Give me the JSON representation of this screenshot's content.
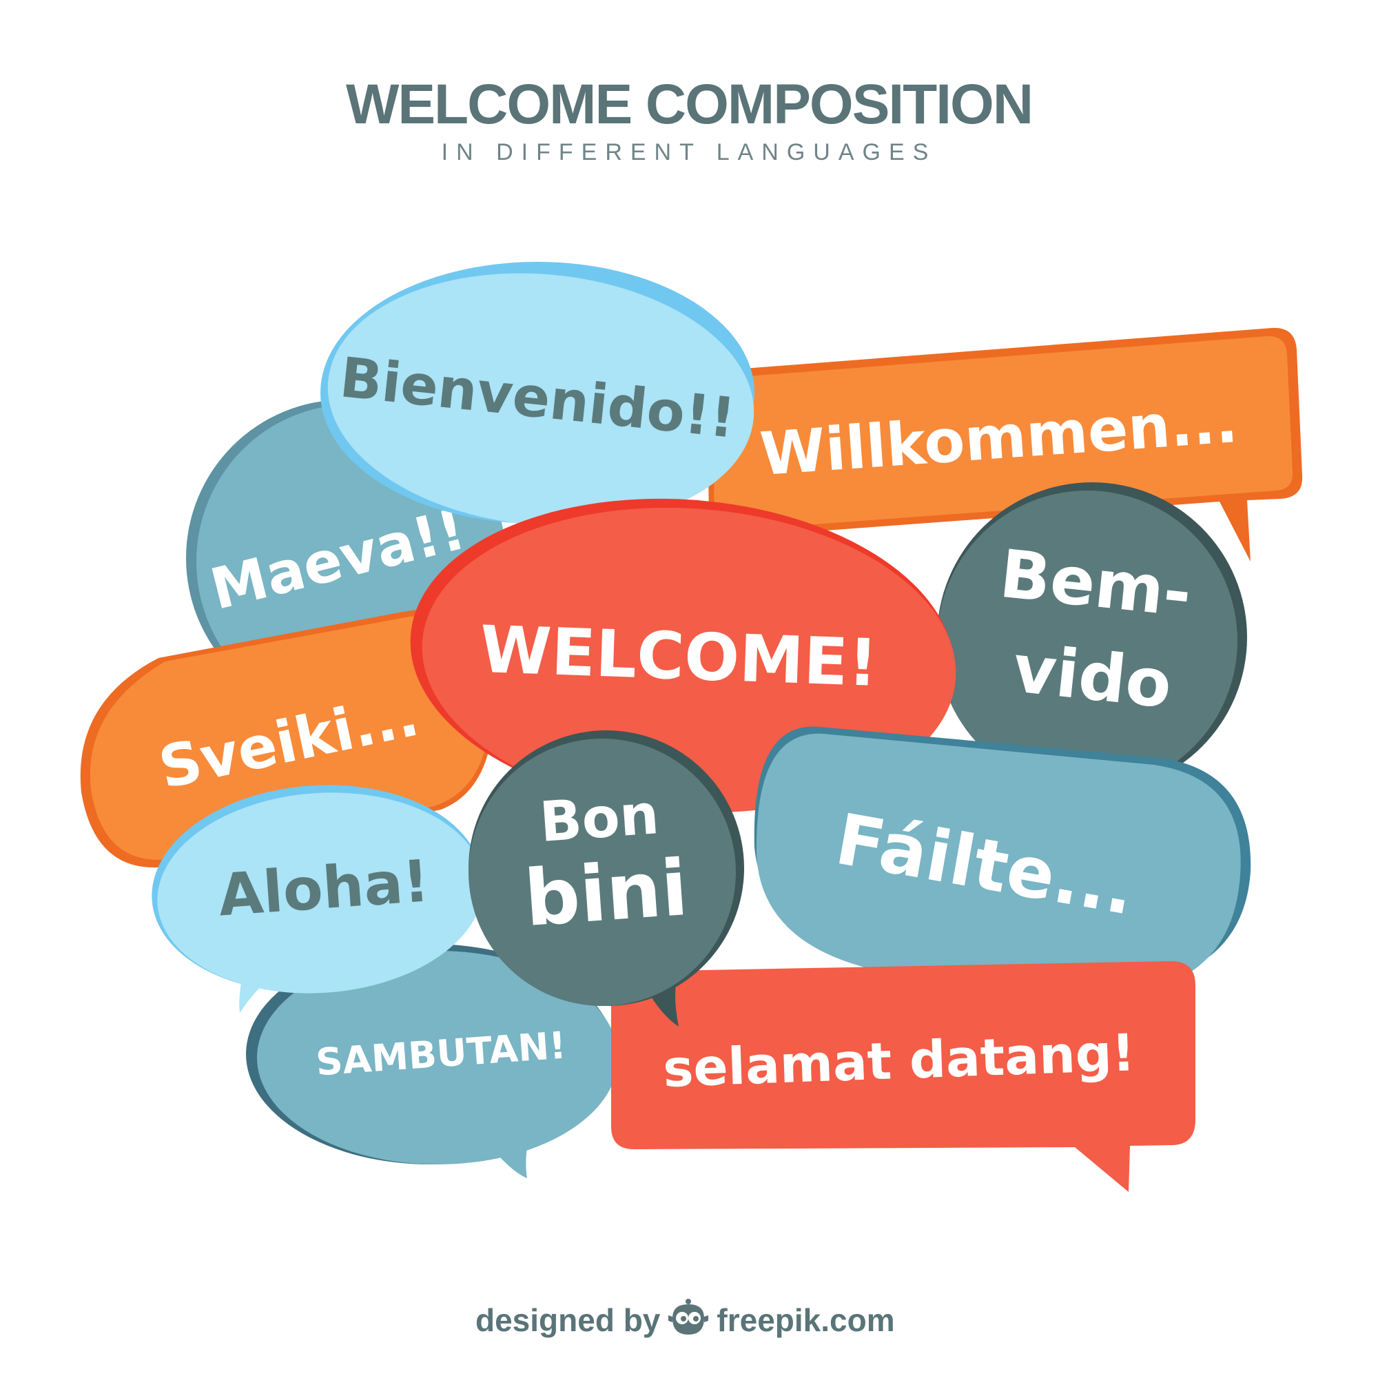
{
  "header": {
    "title": "WELCOME COMPOSITION",
    "subtitle": "IN DIFFERENT LANGUAGES"
  },
  "bubbles": {
    "bienvenido": "Bienvenido!!",
    "willkommen": "Willkommen...",
    "maeva": "Maeva!!",
    "welcome": "WELCOME!",
    "bem_1": "Bem-",
    "bem_2": "vido",
    "sveiki": "Sveiki...",
    "bon_1": "Bon",
    "bon_2": "bini",
    "failte": "Fáilte...",
    "aloha": "Aloha!",
    "sambutan": "SAMBUTAN!",
    "selamat": "selamat datang!"
  },
  "footer": {
    "designed_by": "designed by",
    "brand": "freepik.com"
  },
  "colors": {
    "light_blue": "#abe3f7",
    "steel_blue": "#79b5c4",
    "orange": "#f78b3a",
    "red": "#f45d48",
    "slate": "#5b7a7b",
    "text_dark": "#5a7478"
  }
}
